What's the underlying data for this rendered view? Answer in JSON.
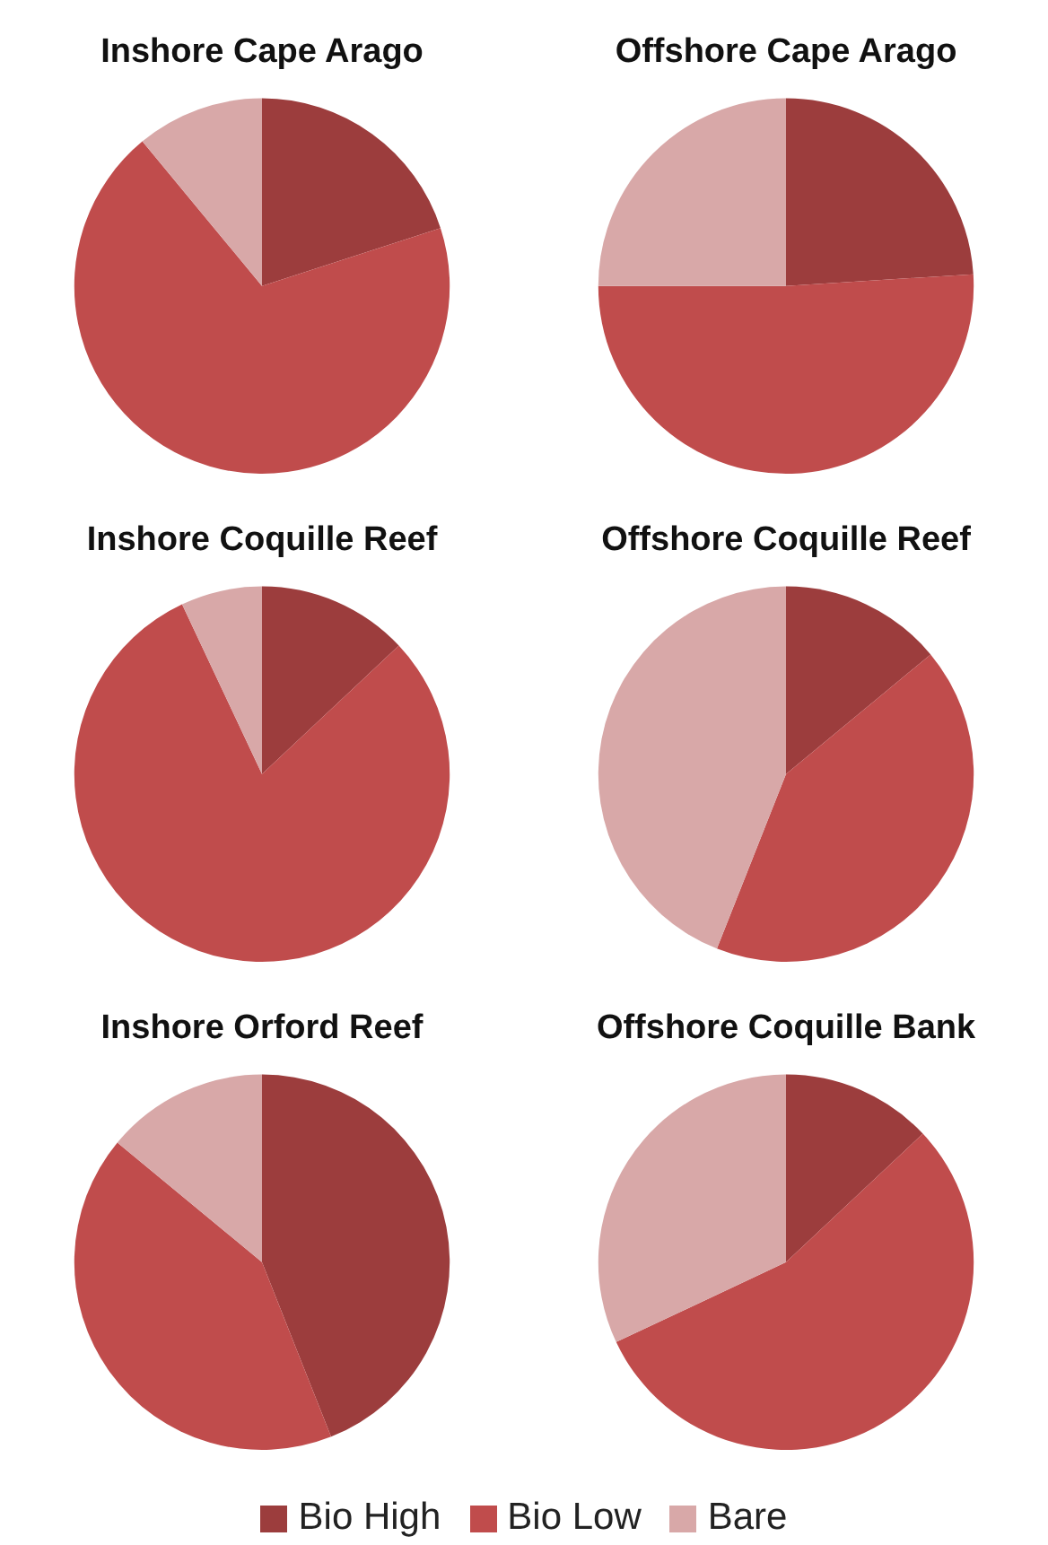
{
  "chart_data": [
    {
      "type": "pie",
      "title": "Inshore Cape Arago",
      "categories": [
        "Bio High",
        "Bio Low",
        "Bare"
      ],
      "values": [
        20,
        69,
        11
      ],
      "colors": [
        "#9c3d3d",
        "#c04c4c",
        "#d8a8a8"
      ],
      "legend": "bottom"
    },
    {
      "type": "pie",
      "title": "Offshore Cape Arago",
      "categories": [
        null,
        null,
        null
      ],
      "values": [
        24,
        51,
        25
      ],
      "colors": [
        "#9c3d3d",
        "#c04c4c",
        "#d8a8a8"
      ]
    },
    {
      "type": "pie",
      "title": "Inshore Coquille Reef",
      "categories": [
        null,
        null,
        null
      ],
      "values": [
        13,
        80,
        7
      ],
      "colors": [
        "#9c3d3d",
        "#c04c4c",
        "#d8a8a8"
      ]
    },
    {
      "type": "pie",
      "title": "Offshore Coquille Reef",
      "categories": [
        null,
        null,
        null
      ],
      "values": [
        14,
        42,
        44
      ],
      "colors": [
        "#9c3d3d",
        "#c04c4c",
        "#d8a8a8"
      ]
    },
    {
      "type": "pie",
      "title": "Inshore Orford Reef",
      "categories": [
        null,
        null,
        null
      ],
      "values": [
        44,
        42,
        14
      ],
      "colors": [
        "#9c3d3d",
        "#c04c4c",
        "#d8a8a8"
      ]
    },
    {
      "type": "pie",
      "title": "Offshore Coquille Bank",
      "categories": [
        null,
        null,
        null
      ],
      "values": [
        13,
        55,
        32
      ],
      "colors": [
        "#9c3d3d",
        "#c04c4c",
        "#d8a8a8"
      ]
    }
  ]
}
